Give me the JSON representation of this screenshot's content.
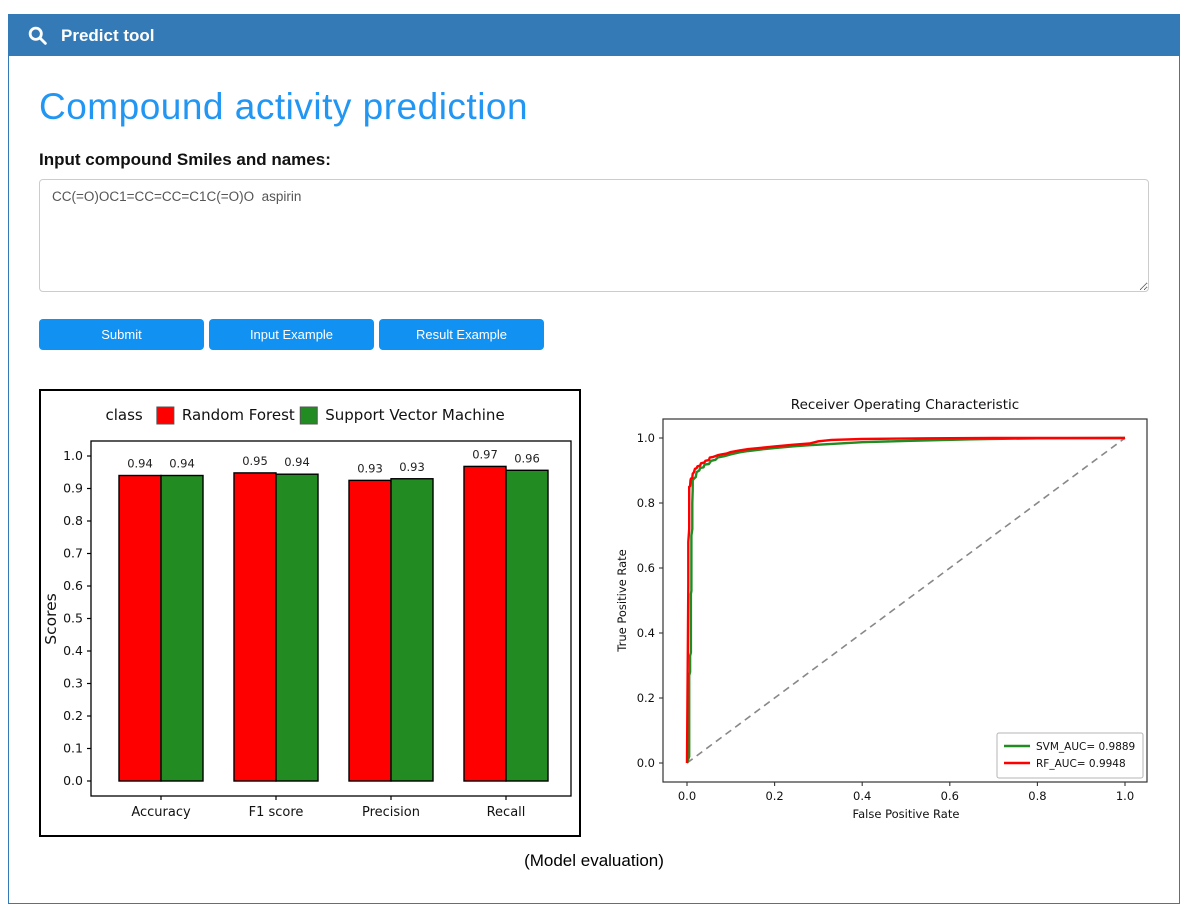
{
  "navbar": {
    "title": "Predict tool"
  },
  "page": {
    "title": "Compound activity prediction",
    "input_label": "Input compound Smiles and names:",
    "caption": "(Model evaluation)"
  },
  "input": {
    "value": "CC(=O)OC1=CC=CC=C1C(=O)O  aspirin"
  },
  "buttons": {
    "submit": "Submit",
    "input_example": "Input Example",
    "result_example": "Result Example"
  },
  "colors": {
    "navbar_bg": "#337ab7",
    "title_blue": "#2196f3",
    "button_blue": "#1191f1",
    "page_border": "#337ab7",
    "bar_red": "#ff0000",
    "bar_green": "#228b22",
    "roc_red": "#ff0000",
    "roc_green": "#228b22",
    "diagonal_gray": "#888888"
  },
  "icons": {
    "search": "magnifying-glass"
  },
  "chart_data": [
    {
      "type": "bar",
      "legend_title": "class",
      "categories": [
        "Accuracy",
        "F1 score",
        "Precision",
        "Recall"
      ],
      "series": [
        {
          "name": "Random Forest",
          "color": "#ff0000",
          "values": [
            0.94,
            0.95,
            0.93,
            0.97
          ],
          "rendered_heights": [
            0.94,
            0.948,
            0.925,
            0.968
          ]
        },
        {
          "name": "Support Vector Machine",
          "color": "#228b22",
          "values": [
            0.94,
            0.94,
            0.93,
            0.96
          ],
          "rendered_heights": [
            0.94,
            0.944,
            0.93,
            0.956
          ]
        }
      ],
      "ylabel": "Scores",
      "ylim": [
        0,
        1.05
      ],
      "yticks": [
        0.0,
        0.1,
        0.2,
        0.3,
        0.4,
        0.5,
        0.6,
        0.7,
        0.8,
        0.9,
        1.0
      ],
      "grid": false,
      "legend_position": "top-center"
    },
    {
      "type": "line",
      "title": "Receiver Operating Characteristic",
      "xlabel": "False Positive Rate",
      "ylabel": "True Positive Rate",
      "xlim": [
        0,
        1
      ],
      "ylim": [
        0,
        1
      ],
      "xticks": [
        0.0,
        0.2,
        0.4,
        0.6,
        0.8,
        1.0
      ],
      "yticks": [
        0.0,
        0.2,
        0.4,
        0.6,
        0.8,
        1.0
      ],
      "grid": false,
      "legend_position": "lower-right",
      "reference_line": {
        "from": [
          0,
          0
        ],
        "to": [
          1,
          1
        ],
        "style": "dashed",
        "color": "#888888"
      },
      "series": [
        {
          "name": "SVM_AUC= 0.9889",
          "color": "#228b22",
          "points": [
            [
              0,
              0
            ],
            [
              0.005,
              0.02
            ],
            [
              0.005,
              0.27
            ],
            [
              0.007,
              0.28
            ],
            [
              0.007,
              0.33
            ],
            [
              0.009,
              0.34
            ],
            [
              0.009,
              0.52
            ],
            [
              0.01,
              0.53
            ],
            [
              0.01,
              0.7
            ],
            [
              0.012,
              0.72
            ],
            [
              0.012,
              0.8
            ],
            [
              0.013,
              0.84
            ],
            [
              0.013,
              0.87
            ],
            [
              0.016,
              0.875
            ],
            [
              0.02,
              0.88
            ],
            [
              0.022,
              0.895
            ],
            [
              0.028,
              0.9
            ],
            [
              0.03,
              0.908
            ],
            [
              0.038,
              0.91
            ],
            [
              0.04,
              0.918
            ],
            [
              0.05,
              0.92
            ],
            [
              0.055,
              0.93
            ],
            [
              0.065,
              0.933
            ],
            [
              0.07,
              0.94
            ],
            [
              0.085,
              0.944
            ],
            [
              0.1,
              0.95
            ],
            [
              0.12,
              0.956
            ],
            [
              0.14,
              0.96
            ],
            [
              0.17,
              0.965
            ],
            [
              0.2,
              0.969
            ],
            [
              0.24,
              0.974
            ],
            [
              0.28,
              0.978
            ],
            [
              0.33,
              0.982
            ],
            [
              0.4,
              0.987
            ],
            [
              0.5,
              0.991
            ],
            [
              0.65,
              0.996
            ],
            [
              0.8,
              0.999
            ],
            [
              1,
              1
            ]
          ]
        },
        {
          "name": "RF_AUC= 0.9948",
          "color": "#ff0000",
          "points": [
            [
              0,
              0
            ],
            [
              0.003,
              0.55
            ],
            [
              0.003,
              0.68
            ],
            [
              0.005,
              0.72
            ],
            [
              0.005,
              0.85
            ],
            [
              0.007,
              0.852
            ],
            [
              0.008,
              0.87
            ],
            [
              0.009,
              0.875
            ],
            [
              0.012,
              0.877
            ],
            [
              0.013,
              0.89
            ],
            [
              0.016,
              0.895
            ],
            [
              0.018,
              0.905
            ],
            [
              0.022,
              0.907
            ],
            [
              0.024,
              0.913
            ],
            [
              0.03,
              0.915
            ],
            [
              0.032,
              0.922
            ],
            [
              0.04,
              0.925
            ],
            [
              0.042,
              0.93
            ],
            [
              0.05,
              0.932
            ],
            [
              0.052,
              0.94
            ],
            [
              0.06,
              0.942
            ],
            [
              0.07,
              0.947
            ],
            [
              0.08,
              0.95
            ],
            [
              0.09,
              0.952
            ],
            [
              0.1,
              0.957
            ],
            [
              0.12,
              0.962
            ],
            [
              0.14,
              0.966
            ],
            [
              0.17,
              0.97
            ],
            [
              0.2,
              0.974
            ],
            [
              0.24,
              0.979
            ],
            [
              0.28,
              0.983
            ],
            [
              0.3,
              0.99
            ],
            [
              0.33,
              0.994
            ],
            [
              0.4,
              0.997
            ],
            [
              0.55,
              0.999
            ],
            [
              0.7,
              1
            ],
            [
              1,
              1
            ]
          ]
        }
      ]
    }
  ]
}
